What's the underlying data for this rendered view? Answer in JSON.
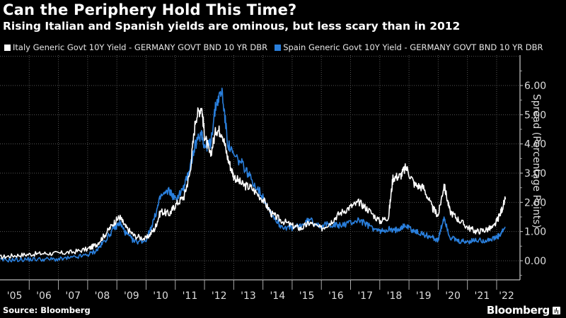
{
  "title": "Can the Periphery Hold This Time?",
  "subtitle": "Rising Italian and Spanish yields are ominous, but less scary than in 2012",
  "source": "Source: Bloomberg",
  "brand": "Bloomberg",
  "chart_data": {
    "type": "line",
    "title": "Can the Periphery Hold This Time?",
    "subtitle": "Rising Italian and Spanish yields are ominous, but less scary than in 2012",
    "xlabel": "",
    "ylabel": "Spread (Percentage Points)",
    "xlim": [
      2005.0,
      2022.45
    ],
    "ylim": [
      -0.65,
      7.0
    ],
    "yticks": [
      0,
      1,
      2,
      3,
      4,
      5,
      6
    ],
    "ytick_labels": [
      "0.00",
      "1.00",
      "2.00",
      "3.00",
      "4.00",
      "5.00",
      "6.00"
    ],
    "xtick_labels": [
      "'05",
      "'06",
      "'07",
      "'08",
      "'09",
      "'10",
      "'11",
      "'12",
      "'13",
      "'14",
      "'15",
      "'16",
      "'17",
      "'18",
      "'19",
      "'20",
      "'21",
      "'22"
    ],
    "grid": true,
    "legend_position": "top-left",
    "series": [
      {
        "name": "Italy Generic Govt 10Y Yield - GERMANY GOVT BND 10 YR DBR",
        "color": "#ffffff",
        "x": [
          2005.0,
          2005.5,
          2006.0,
          2006.5,
          2007.0,
          2007.5,
          2008.0,
          2008.3,
          2008.6,
          2008.9,
          2009.1,
          2009.3,
          2009.6,
          2010.0,
          2010.3,
          2010.5,
          2010.8,
          2011.0,
          2011.3,
          2011.5,
          2011.7,
          2011.9,
          2012.0,
          2012.2,
          2012.4,
          2012.6,
          2012.8,
          2013.0,
          2013.3,
          2013.6,
          2014.0,
          2014.3,
          2014.6,
          2015.0,
          2015.3,
          2015.6,
          2016.0,
          2016.3,
          2016.6,
          2017.0,
          2017.3,
          2017.6,
          2018.0,
          2018.3,
          2018.45,
          2018.7,
          2018.9,
          2019.2,
          2019.5,
          2019.8,
          2020.0,
          2020.2,
          2020.4,
          2020.7,
          2021.0,
          2021.3,
          2021.6,
          2021.9,
          2022.1,
          2022.3
        ],
        "values": [
          0.12,
          0.18,
          0.22,
          0.25,
          0.25,
          0.3,
          0.4,
          0.55,
          0.9,
          1.3,
          1.5,
          1.15,
          0.85,
          0.75,
          1.1,
          1.7,
          1.6,
          1.9,
          2.2,
          3.0,
          4.9,
          5.3,
          4.3,
          3.6,
          4.5,
          4.4,
          3.5,
          2.9,
          2.6,
          2.5,
          2.1,
          1.6,
          1.4,
          1.2,
          1.1,
          1.3,
          1.1,
          1.3,
          1.6,
          1.85,
          2.0,
          1.75,
          1.35,
          1.5,
          2.85,
          2.9,
          3.2,
          2.6,
          2.5,
          1.8,
          1.55,
          2.6,
          1.7,
          1.4,
          1.15,
          1.0,
          1.05,
          1.15,
          1.55,
          2.1
        ]
      },
      {
        "name": "Spain Generic Govt 10Y Yield - GERMANY GOVT BND 10 YR DBR",
        "color": "#2a7fdc",
        "x": [
          2005.0,
          2005.5,
          2006.0,
          2006.5,
          2007.0,
          2007.5,
          2008.0,
          2008.3,
          2008.6,
          2008.9,
          2009.1,
          2009.3,
          2009.6,
          2010.0,
          2010.3,
          2010.5,
          2010.8,
          2011.0,
          2011.3,
          2011.5,
          2011.7,
          2011.9,
          2012.0,
          2012.2,
          2012.4,
          2012.6,
          2012.8,
          2013.0,
          2013.3,
          2013.6,
          2014.0,
          2014.3,
          2014.6,
          2015.0,
          2015.3,
          2015.6,
          2016.0,
          2016.3,
          2016.6,
          2017.0,
          2017.3,
          2017.6,
          2018.0,
          2018.3,
          2018.45,
          2018.7,
          2018.9,
          2019.2,
          2019.5,
          2019.8,
          2020.0,
          2020.2,
          2020.4,
          2020.7,
          2021.0,
          2021.3,
          2021.6,
          2021.9,
          2022.1,
          2022.3
        ],
        "values": [
          0.02,
          0.03,
          0.05,
          0.05,
          0.05,
          0.1,
          0.2,
          0.35,
          0.7,
          1.1,
          1.3,
          0.95,
          0.65,
          0.7,
          1.5,
          2.2,
          2.4,
          2.1,
          2.5,
          3.2,
          4.0,
          4.4,
          3.9,
          4.0,
          5.4,
          5.8,
          4.0,
          3.6,
          3.3,
          2.8,
          2.2,
          1.6,
          1.2,
          1.1,
          1.2,
          1.4,
          1.2,
          1.25,
          1.2,
          1.3,
          1.4,
          1.2,
          1.0,
          1.1,
          1.0,
          1.15,
          1.2,
          1.0,
          0.9,
          0.8,
          0.7,
          1.5,
          0.8,
          0.65,
          0.65,
          0.7,
          0.7,
          0.75,
          0.85,
          1.15
        ]
      }
    ]
  }
}
